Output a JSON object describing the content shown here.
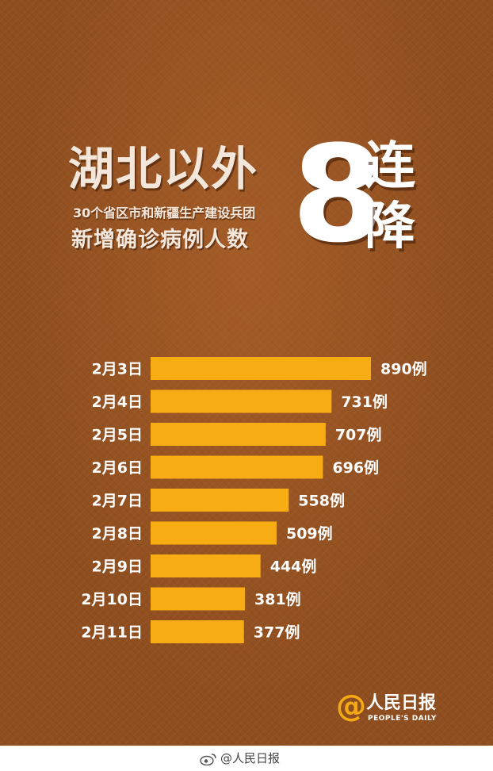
{
  "header": {
    "title_main": "湖北以外",
    "title_sub1": "30个省区市和新疆生产建设兵团",
    "title_sub2": "新增确诊病例人数",
    "big_number": "8",
    "side_char_1": "连",
    "side_char_2": "降"
  },
  "chart_data": {
    "type": "bar",
    "orientation": "horizontal",
    "categories": [
      "2月3日",
      "2月4日",
      "2月5日",
      "2月6日",
      "2月7日",
      "2月8日",
      "2月9日",
      "2月10日",
      "2月11日"
    ],
    "values": [
      890,
      731,
      707,
      696,
      558,
      509,
      444,
      381,
      377
    ],
    "value_labels": [
      "890例",
      "731例",
      "707例",
      "696例",
      "558例",
      "509例",
      "444例",
      "381例",
      "377例"
    ],
    "bar_color": "#f8ac13",
    "xlim": [
      0,
      890
    ]
  },
  "logo": {
    "at_symbol": "@",
    "name": "人民日报",
    "english": "PEOPLE'S DAILY"
  },
  "watermark": {
    "text": "@人民日报"
  },
  "colors": {
    "background": "#8f4e1f",
    "title_text": "#f3e7dc",
    "label_text": "#ffffff",
    "accent": "#f5a912"
  }
}
